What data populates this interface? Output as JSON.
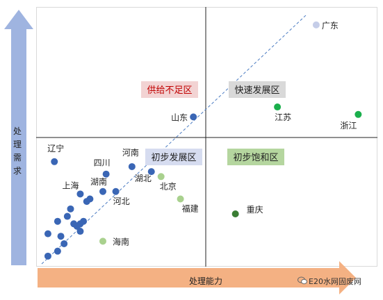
{
  "axes": {
    "y_label": "处理需求",
    "x_label": "处理能力"
  },
  "watermark": "E20水网固废网",
  "colors": {
    "blue": "#3a66b5",
    "light_green": "#a9d18e",
    "green": "#1aaf4c",
    "dark_green": "#3a7d34",
    "lavender": "#c5cde8",
    "y_arrow": "#9fb4e0",
    "x_arrow": "#f4b183"
  },
  "chart_data": {
    "type": "scatter",
    "title": "",
    "xlabel": "处理能力",
    "ylabel": "处理需求",
    "quadrants": [
      {
        "label": "供给不足区",
        "position": "upper-left",
        "bg": "#f2d3d3",
        "color": "#c00000"
      },
      {
        "label": "快速发展区",
        "position": "upper-right",
        "bg": "#d9d9d9",
        "color": "#222222"
      },
      {
        "label": "初步发展区",
        "position": "lower-left",
        "bg": "#d6dcf0",
        "color": "#222222"
      },
      {
        "label": "初步饱和区",
        "position": "lower-right",
        "bg": "#b5d69f",
        "color": "#222222"
      }
    ],
    "points": [
      {
        "name": "广东",
        "x": 0.86,
        "y": 0.95,
        "color": "#c5cde8"
      },
      {
        "name": "江苏",
        "x": 0.74,
        "y": 0.62,
        "color": "#1aaf4c"
      },
      {
        "name": "浙江",
        "x": 0.99,
        "y": 0.59,
        "color": "#1aaf4c"
      },
      {
        "name": "山东",
        "x": 0.48,
        "y": 0.58,
        "color": "#3a66b5"
      },
      {
        "name": "辽宁",
        "x": 0.05,
        "y": 0.4,
        "color": "#3a66b5"
      },
      {
        "name": "河南",
        "x": 0.29,
        "y": 0.38,
        "color": "#3a66b5"
      },
      {
        "name": "四川",
        "x": 0.21,
        "y": 0.35,
        "color": "#3a66b5"
      },
      {
        "name": "湖北",
        "x": 0.35,
        "y": 0.36,
        "color": "#3a66b5"
      },
      {
        "name": "北京",
        "x": 0.38,
        "y": 0.34,
        "color": "#a9d18e"
      },
      {
        "name": "湖南",
        "x": 0.2,
        "y": 0.28,
        "color": "#3a66b5"
      },
      {
        "name": "上海",
        "x": 0.13,
        "y": 0.27,
        "color": "#3a66b5"
      },
      {
        "name": "河北",
        "x": 0.24,
        "y": 0.28,
        "color": "#3a66b5"
      },
      {
        "name": "福建",
        "x": 0.44,
        "y": 0.25,
        "color": "#a9d18e"
      },
      {
        "name": "重庆",
        "x": 0.61,
        "y": 0.19,
        "color": "#3a7d34"
      },
      {
        "name": "海南",
        "x": 0.2,
        "y": 0.08,
        "color": "#a9d18e"
      },
      {
        "name": "",
        "x": 0.1,
        "y": 0.21,
        "color": "#3a66b5"
      },
      {
        "name": "",
        "x": 0.09,
        "y": 0.18,
        "color": "#3a66b5"
      },
      {
        "name": "",
        "x": 0.06,
        "y": 0.16,
        "color": "#3a66b5"
      },
      {
        "name": "",
        "x": 0.11,
        "y": 0.15,
        "color": "#3a66b5"
      },
      {
        "name": "",
        "x": 0.14,
        "y": 0.16,
        "color": "#3a66b5"
      },
      {
        "name": "",
        "x": 0.13,
        "y": 0.15,
        "color": "#3a66b5"
      },
      {
        "name": "",
        "x": 0.12,
        "y": 0.14,
        "color": "#3a66b5"
      },
      {
        "name": "",
        "x": 0.15,
        "y": 0.24,
        "color": "#3a66b5"
      },
      {
        "name": "",
        "x": 0.16,
        "y": 0.25,
        "color": "#3a66b5"
      },
      {
        "name": "",
        "x": 0.13,
        "y": 0.12,
        "color": "#3a66b5"
      },
      {
        "name": "",
        "x": 0.03,
        "y": 0.11,
        "color": "#3a66b5"
      },
      {
        "name": "",
        "x": 0.07,
        "y": 0.1,
        "color": "#3a66b5"
      },
      {
        "name": "",
        "x": 0.08,
        "y": 0.07,
        "color": "#3a66b5"
      },
      {
        "name": "",
        "x": 0.06,
        "y": 0.04,
        "color": "#3a66b5"
      },
      {
        "name": "",
        "x": 0.03,
        "y": 0.02,
        "color": "#3a66b5"
      }
    ]
  }
}
